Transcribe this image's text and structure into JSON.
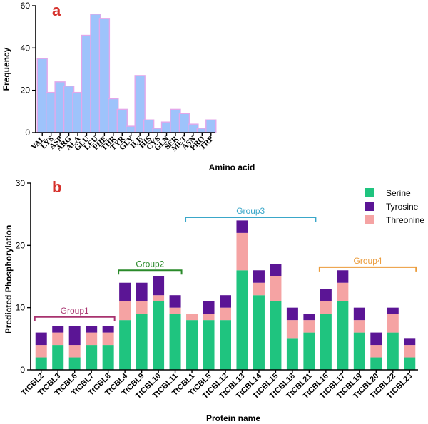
{
  "colors": {
    "bar_a_fill": "#9ec3fb",
    "bar_a_stroke": "#e3a7ea",
    "serine": "#1fc47f",
    "tyrosine": "#5b1595",
    "threonine": "#f5a3a3",
    "letter": "#d6312c",
    "group1": "#a8326f",
    "group2": "#2a8a2a",
    "group3": "#3aa7c9",
    "group4": "#eb9b3a"
  },
  "chart_data": [
    {
      "type": "bar",
      "panel_label": "a",
      "xlabel": "Amino acid",
      "ylabel": "Frequency",
      "ylim": [
        0,
        60
      ],
      "yticks": [
        0,
        20,
        40,
        60
      ],
      "categories": [
        "VAL",
        "LYS",
        "ASP",
        "ARG",
        "ALA",
        "GLU",
        "LEU",
        "PHE",
        "THR",
        "TYR",
        "GLY",
        "ILE",
        "HIS",
        "CYS",
        "GLN",
        "SER",
        "MET",
        "ASN",
        "PRO",
        "TRP"
      ],
      "values": [
        35,
        19,
        24,
        22,
        19,
        46,
        56,
        54,
        16,
        11,
        3,
        27,
        6,
        2,
        5,
        11,
        9,
        4,
        2,
        6
      ]
    },
    {
      "type": "bar",
      "stacked": true,
      "panel_label": "b",
      "xlabel": "Protein name",
      "ylabel": "Predicted Phosphorylation",
      "ylim": [
        0,
        30
      ],
      "yticks": [
        0,
        10,
        20,
        30
      ],
      "categories": [
        "TtCBL2",
        "TtCBL3",
        "TtCBL6",
        "TtCBL7",
        "TtCBL8",
        "TtCBL4",
        "TtCBL9",
        "TtCBL10",
        "TtCBL11",
        "TtCBL1",
        "TtCBL5",
        "TtCBL12",
        "TtCBL13",
        "TtCBL14",
        "TtCBL15",
        "TtCBL18",
        "TtCBL21",
        "TtCBL16",
        "TtCBL17",
        "TtCBL19",
        "TtCBL20",
        "TtCBL22",
        "TtCBL23"
      ],
      "series": [
        {
          "name": "Serine",
          "values": [
            2,
            4,
            2,
            4,
            4,
            8,
            9,
            11,
            9,
            8,
            8,
            8,
            16,
            12,
            11,
            5,
            6,
            9,
            11,
            6,
            2,
            6,
            2
          ]
        },
        {
          "name": "Threonine",
          "values": [
            2,
            2,
            2,
            2,
            2,
            3,
            2,
            1,
            1,
            1,
            1,
            2,
            6,
            2,
            4,
            3,
            2,
            2,
            3,
            2,
            2,
            3,
            2
          ]
        },
        {
          "name": "Tyrosine",
          "values": [
            2,
            1,
            3,
            1,
            1,
            3,
            3,
            3,
            2,
            0,
            2,
            2,
            2,
            2,
            2,
            2,
            1,
            2,
            2,
            2,
            2,
            1,
            1
          ]
        }
      ],
      "legend": {
        "position": "top-right",
        "entries": [
          "Serine",
          "Tyrosine",
          "Threonine"
        ]
      },
      "groups": [
        {
          "label": "Group1",
          "start": 0,
          "end": 4,
          "level": 8.5
        },
        {
          "label": "Group2",
          "start": 5,
          "end": 8,
          "level": 16.0
        },
        {
          "label": "Group3",
          "start": 9,
          "end": 16,
          "level": 24.5
        },
        {
          "label": "Group4",
          "start": 17,
          "end": 22,
          "level": 16.5
        }
      ]
    }
  ]
}
